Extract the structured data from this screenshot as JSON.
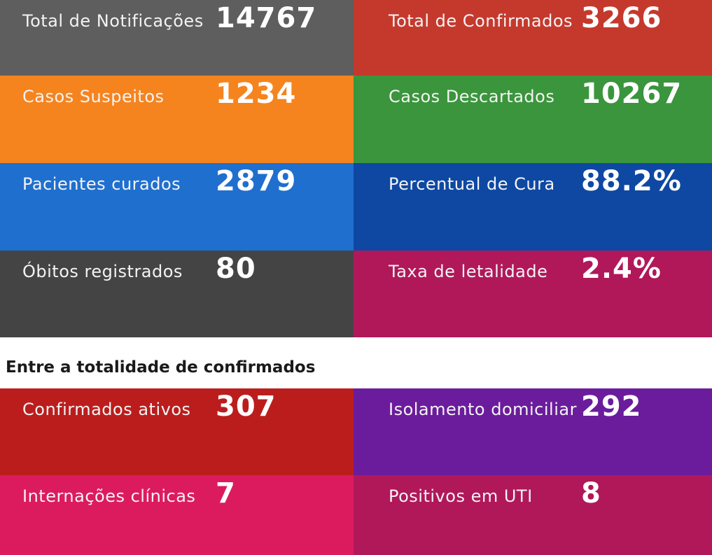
{
  "stats": [
    {
      "label": "Total de Notificações",
      "value": "14767",
      "color": "#5e5e5e"
    },
    {
      "label": "Total de Confirmados",
      "value": "3266",
      "color": "#c5392d"
    },
    {
      "label": "Casos Suspeitos",
      "value": "1234",
      "color": "#f5841f"
    },
    {
      "label": "Casos Descartados",
      "value": "10267",
      "color": "#3a953c"
    },
    {
      "label": "Pacientes curados",
      "value": "2879",
      "color": "#1f6fcf"
    },
    {
      "label": "Percentual de Cura",
      "value": "88.2%",
      "color": "#0e48a3"
    },
    {
      "label": "Óbitos registrados",
      "value": "80",
      "color": "#444444"
    },
    {
      "label": "Taxa de letalidade",
      "value": "2.4%",
      "color": "#b0185a"
    }
  ],
  "section_heading": "Entre a totalidade de confirmados",
  "confirmed_breakdown": [
    {
      "label": "Confirmados ativos",
      "value": "307",
      "color": "#bb1d1d"
    },
    {
      "label": "Isolamento domiciliar",
      "value": "292",
      "color": "#6b1c9c"
    },
    {
      "label": "Internações clínicas",
      "value": "7",
      "color": "#dc1b5e"
    },
    {
      "label": "Positivos em UTI",
      "value": "8",
      "color": "#b0185a"
    }
  ]
}
